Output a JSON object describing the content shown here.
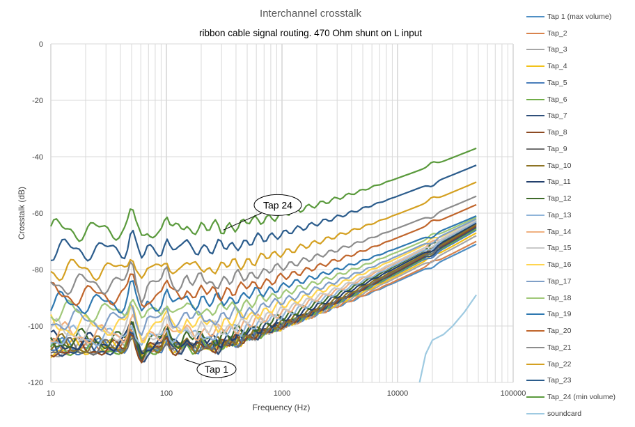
{
  "chart_data": {
    "type": "line",
    "title": "Interchannel crosstalk",
    "subtitle": "ribbon cable signal routing. 470 Ohm shunt on L input",
    "xlabel": "Frequency (Hz)",
    "ylabel": "Crosstalk (dB)",
    "xscale": "log",
    "xlim": [
      10,
      100000
    ],
    "ylim": [
      -120,
      0
    ],
    "x_ticks": [
      "10",
      "100",
      "1000",
      "10000",
      "100000"
    ],
    "y_ticks": [
      "0",
      "-20",
      "-40",
      "-60",
      "-80",
      "-100",
      "-120"
    ],
    "grid": true,
    "legend_position": "right",
    "annotations": [
      {
        "text": "Tap 24",
        "x": 200,
        "y": -67
      },
      {
        "text": "Tap 1",
        "x": 150,
        "y": -112
      }
    ],
    "series": [
      {
        "name": "Tap 1 (max volume)",
        "color": "#4f8fc4",
        "floor": -107,
        "end": -71,
        "amp": 0.7
      },
      {
        "name": "Tap_2",
        "color": "#d9834d",
        "floor": -107.5,
        "end": -70,
        "amp": 0.75
      },
      {
        "name": "Tap_3",
        "color": "#a6a6a6",
        "floor": -108,
        "end": -68,
        "amp": 0.8
      },
      {
        "name": "Tap_4",
        "color": "#f2c21a",
        "floor": -108,
        "end": -67,
        "amp": 0.85
      },
      {
        "name": "Tap_5",
        "color": "#4a7ebb",
        "floor": -108,
        "end": -66,
        "amp": 0.85
      },
      {
        "name": "Tap_6",
        "color": "#70ad47",
        "floor": -108,
        "end": -65.5,
        "amp": 0.85
      },
      {
        "name": "Tap_7",
        "color": "#2f4f7a",
        "floor": -108,
        "end": -65,
        "amp": 0.9
      },
      {
        "name": "Tap_8",
        "color": "#8c4a22",
        "floor": -108,
        "end": -64.5,
        "amp": 0.9
      },
      {
        "name": "Tap_9",
        "color": "#6e6e6e",
        "floor": -108,
        "end": -64,
        "amp": 0.9
      },
      {
        "name": "Tap_10",
        "color": "#8d7324",
        "floor": -107,
        "end": -64,
        "amp": 0.95
      },
      {
        "name": "Tap_11",
        "color": "#23406d",
        "floor": -106,
        "end": -63.5,
        "amp": 0.95
      },
      {
        "name": "Tap_12",
        "color": "#3f6b2a",
        "floor": -105,
        "end": -63,
        "amp": 1.0
      },
      {
        "name": "Tap_13",
        "color": "#8fb4d9",
        "floor": -104,
        "end": -63,
        "amp": 1.0
      },
      {
        "name": "Tap_14",
        "color": "#f0b080",
        "floor": -103,
        "end": -62.5,
        "amp": 1.0
      },
      {
        "name": "Tap_15",
        "color": "#c9c9c9",
        "floor": -102,
        "end": -62.5,
        "amp": 1.0
      },
      {
        "name": "Tap_16",
        "color": "#ffd54f",
        "floor": -100,
        "end": -62,
        "amp": 1.0
      },
      {
        "name": "Tap_17",
        "color": "#7f9fc7",
        "floor": -98,
        "end": -62,
        "amp": 1.0
      },
      {
        "name": "Tap_18",
        "color": "#a0c878",
        "floor": -95,
        "end": -61.5,
        "amp": 1.0
      },
      {
        "name": "Tap_19",
        "color": "#2e78b0",
        "floor": -92,
        "end": -61,
        "amp": 1.0
      },
      {
        "name": "Tap_20",
        "color": "#c0652b",
        "floor": -89,
        "end": -57,
        "amp": 1.0
      },
      {
        "name": "Tap_21",
        "color": "#8c8c8c",
        "floor": -85,
        "end": -54,
        "amp": 1.0
      },
      {
        "name": "Tap_22",
        "color": "#d4a021",
        "floor": -80,
        "end": -49,
        "amp": 1.0
      },
      {
        "name": "Tap_23",
        "color": "#2b5c8c",
        "floor": -73,
        "end": -43,
        "amp": 1.0
      },
      {
        "name": "Tap_24 (min volume)",
        "color": "#5a9a3c",
        "floor": -66,
        "end": -37,
        "amp": 1.0
      },
      {
        "name": "soundcard",
        "color": "#9ecae1",
        "points": [
          [
            15500,
            -120
          ],
          [
            17500,
            -110
          ],
          [
            20000,
            -105
          ],
          [
            25000,
            -103
          ],
          [
            30000,
            -100
          ],
          [
            38000,
            -95
          ],
          [
            48000,
            -89
          ]
        ]
      }
    ]
  }
}
